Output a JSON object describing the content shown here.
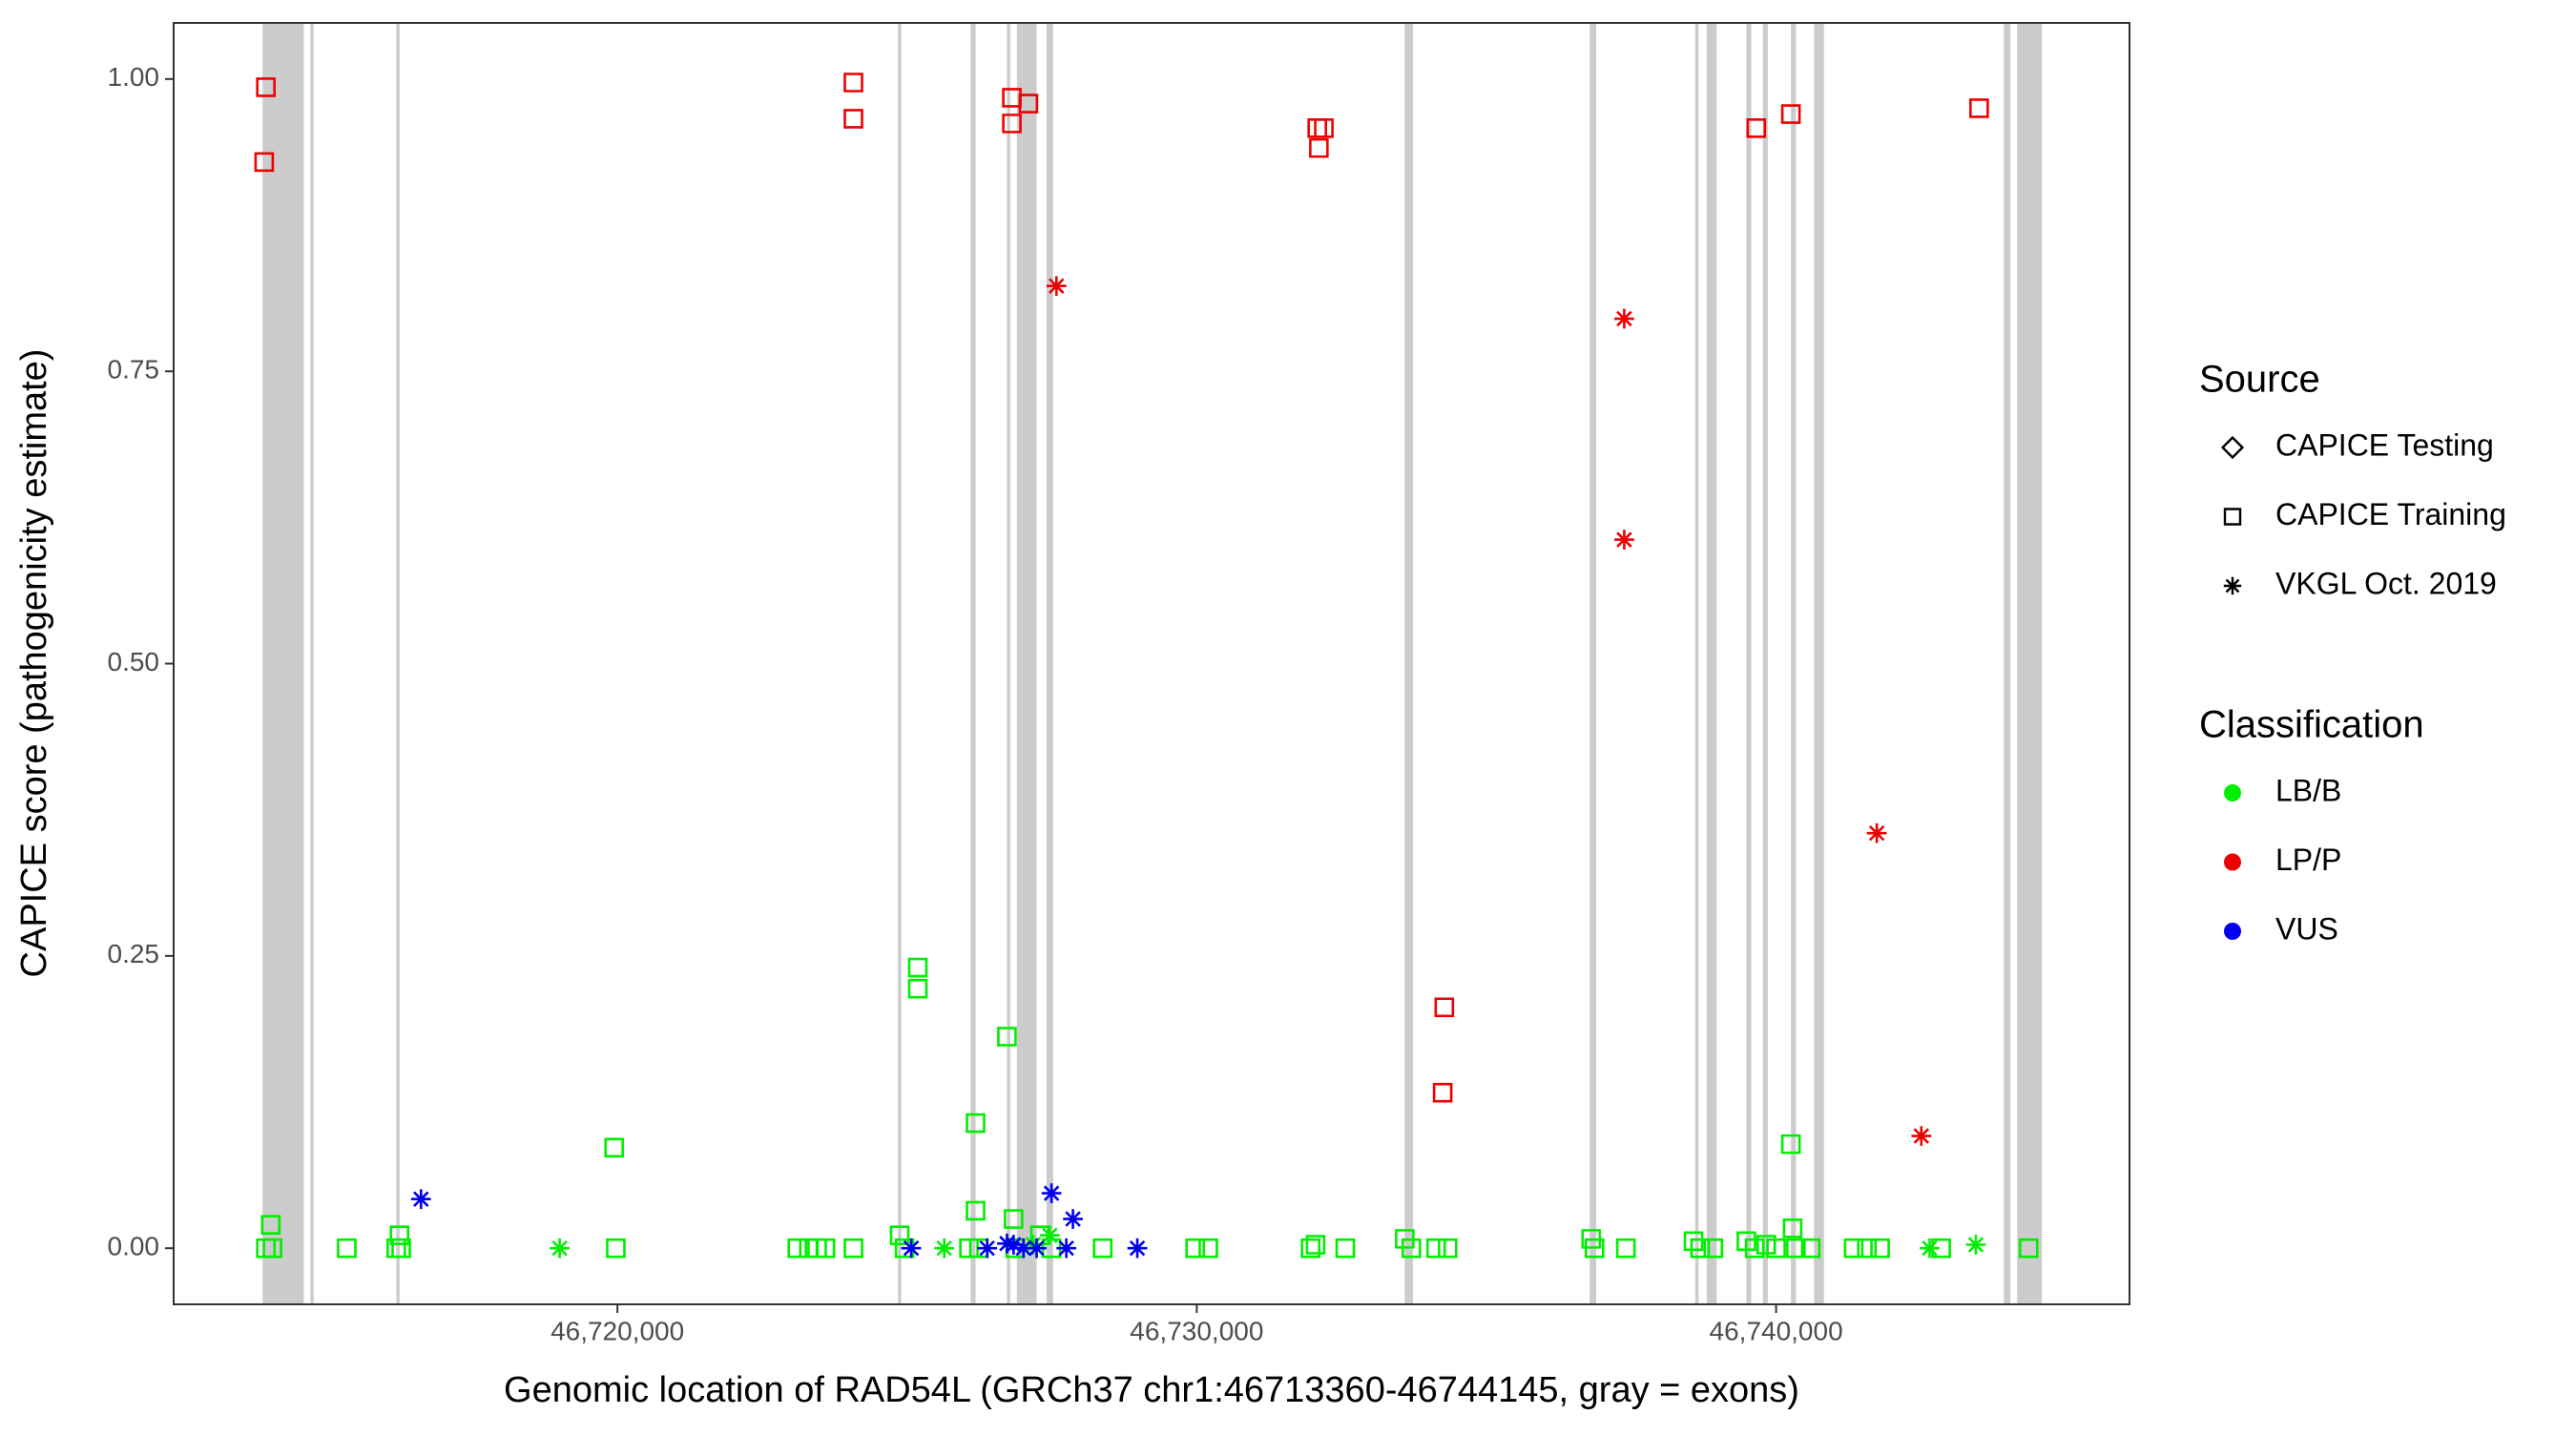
{
  "chart_data": {
    "type": "scatter",
    "xlabel": "Genomic location of RAD54L (GRCh37 chr1:46713360-46744145, gray = exons)",
    "ylabel": "CAPICE score (pathogenicity estimate)",
    "xlim": [
      46712340,
      46746100
    ],
    "ylim": [
      -0.048,
      1.048
    ],
    "xticks": [
      {
        "value": 46720000,
        "label": "46,720,000"
      },
      {
        "value": 46730000,
        "label": "46,730,000"
      },
      {
        "value": 46740000,
        "label": "46,740,000"
      }
    ],
    "yticks": [
      {
        "value": 0,
        "label": "0.00"
      },
      {
        "value": 0.25,
        "label": "0.25"
      },
      {
        "value": 0.5,
        "label": "0.50"
      },
      {
        "value": 0.75,
        "label": "0.75"
      },
      {
        "value": 1,
        "label": "1.00"
      }
    ],
    "exon_color": "#cccccc",
    "exons": [
      [
        46713875,
        46714587
      ],
      [
        46714700,
        46714757
      ],
      [
        46716183,
        46716240
      ],
      [
        46724843,
        46724900
      ],
      [
        46726097,
        46726182
      ],
      [
        46726724,
        46726781
      ],
      [
        46726895,
        46727236
      ],
      [
        46727407,
        46727521
      ],
      [
        46733589,
        46733732
      ],
      [
        46736781,
        46736895
      ],
      [
        46738604,
        46738661
      ],
      [
        46738803,
        46738974
      ],
      [
        46739487,
        46739572
      ],
      [
        46739772,
        46739857
      ],
      [
        46740256,
        46740342
      ],
      [
        46740655,
        46740826
      ],
      [
        46743932,
        46744046
      ],
      [
        46744160,
        46744587
      ]
    ],
    "shape_legend": {
      "title": "Source",
      "entries": [
        {
          "name": "CAPICE Testing",
          "shape": "diamond"
        },
        {
          "name": "CAPICE Training",
          "shape": "square"
        },
        {
          "name": "VKGL Oct. 2019",
          "shape": "asterisk"
        }
      ]
    },
    "color_legend": {
      "title": "Classification",
      "entries": [
        {
          "name": "LB/B",
          "color": "#00ee00"
        },
        {
          "name": "LP/P",
          "color": "#ee0000"
        },
        {
          "name": "VUS",
          "color": "#0000ee"
        }
      ]
    },
    "series": [
      {
        "source": "CAPICE Training",
        "classification": "LB/B",
        "x": [
          46714017,
          46713932,
          46714046,
          46715328,
          46716239,
          46716182,
          46716268,
          46719943,
          46719972,
          46723105,
          46723305,
          46723447,
          46723590,
          46724074,
          46724872,
          46724957,
          46725185,
          46725185,
          46726068,
          46726182,
          46726182,
          46726239,
          46726724,
          46726838,
          46726866,
          46727293,
          46727493,
          46728376,
          46729972,
          46730199,
          46731966,
          46732051,
          46732564,
          46733590,
          46733704,
          46734131,
          46734330,
          46736809,
          46736866,
          46737407,
          46738575,
          46738689,
          46738917,
          46739487,
          46739630,
          46739829,
          46740000,
          46740256,
          46740285,
          46740342,
          46740598,
          46741339,
          46741567,
          46741795,
          46742849,
          46744359
        ],
        "y": [
          0.02,
          0,
          0,
          0,
          0.011,
          0,
          0,
          0.086,
          0,
          0,
          0,
          0,
          0,
          0,
          0.011,
          0,
          0.24,
          0.222,
          0,
          0.107,
          0.032,
          0,
          0.181,
          0.025,
          0,
          0.011,
          0,
          0,
          0,
          0,
          0,
          0.003,
          0,
          0.008,
          0,
          0,
          0,
          0.008,
          0,
          0,
          0.006,
          0,
          0,
          0.006,
          0,
          0.003,
          0,
          0.089,
          0.017,
          0,
          0,
          0,
          0,
          0,
          0,
          0
        ]
      },
      {
        "source": "CAPICE Training",
        "classification": "LP/P",
        "x": [
          46713932,
          46713903,
          46724074,
          46724074,
          46726809,
          46727094,
          46726809,
          46732080,
          46732194,
          46732108,
          46734273,
          46734245,
          46739658,
          46740256,
          46743504
        ],
        "y": [
          0.993,
          0.929,
          0.997,
          0.966,
          0.984,
          0.979,
          0.962,
          0.958,
          0.958,
          0.941,
          0.206,
          0.133,
          0.958,
          0.97,
          0.975
        ]
      },
      {
        "source": "VKGL Oct. 2019",
        "classification": "LB/B",
        "x": [
          46719003,
          46725641,
          46742650,
          46743448,
          46727464,
          46727179
        ],
        "y": [
          0,
          0,
          0,
          0.003,
          0.011,
          0.003
        ]
      },
      {
        "source": "VKGL Oct. 2019",
        "classification": "LP/P",
        "x": [
          46727578,
          46737379,
          46737379,
          46741738,
          46742507
        ],
        "y": [
          0.823,
          0.795,
          0.606,
          0.355,
          0.096
        ]
      },
      {
        "source": "VKGL Oct. 2019",
        "classification": "VUS",
        "x": [
          46716610,
          46725071,
          46726382,
          46726724,
          46726838,
          46727493,
          46727863,
          46727749,
          46728974,
          46727009,
          46727236
        ],
        "y": [
          0.042,
          0,
          0,
          0.004,
          0.003,
          0.047,
          0.025,
          0,
          0,
          0,
          0
        ]
      }
    ]
  }
}
